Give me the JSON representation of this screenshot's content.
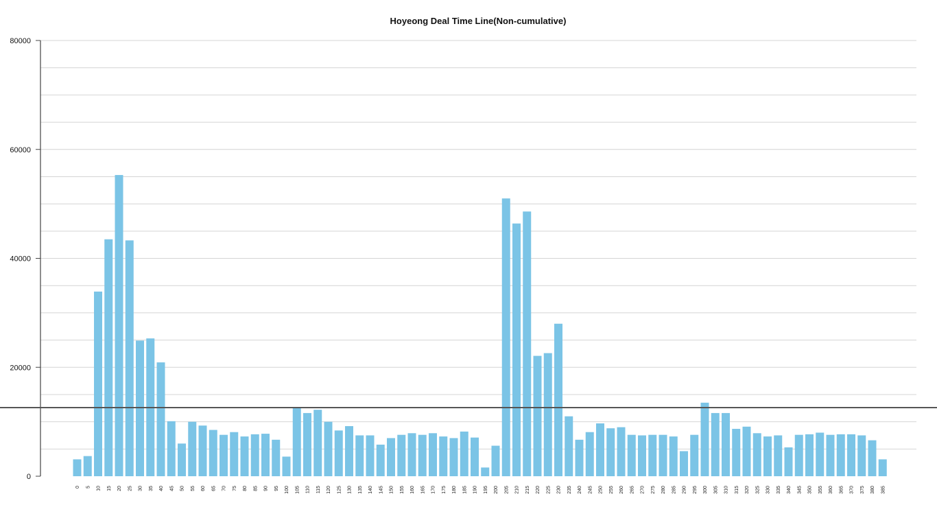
{
  "chart_data": {
    "type": "bar",
    "title": "Hoyeong Deal Time Line(Non-cumulative)",
    "xlabel": "",
    "ylabel": "",
    "ylim": [
      0,
      80000
    ],
    "yticks": [
      "0",
      "20000",
      "40000",
      "60000",
      "80000"
    ],
    "grid": true,
    "categories": [
      "0",
      "5",
      "10",
      "15",
      "20",
      "25",
      "30",
      "35",
      "40",
      "45",
      "50",
      "55",
      "60",
      "65",
      "70",
      "75",
      "80",
      "85",
      "90",
      "95",
      "100",
      "105",
      "110",
      "115",
      "120",
      "125",
      "130",
      "135",
      "140",
      "145",
      "150",
      "155",
      "160",
      "165",
      "170",
      "175",
      "180",
      "185",
      "190",
      "195",
      "200",
      "205",
      "210",
      "215",
      "220",
      "225",
      "230",
      "235",
      "240",
      "245",
      "250",
      "255",
      "260",
      "265",
      "270",
      "275",
      "280",
      "285",
      "290",
      "295",
      "300",
      "305",
      "310",
      "315",
      "320",
      "325",
      "330",
      "335",
      "340",
      "345",
      "350",
      "355",
      "360",
      "365",
      "370",
      "375",
      "380",
      "385"
    ],
    "values": [
      3100,
      3700,
      33900,
      43500,
      55300,
      43300,
      24900,
      25300,
      20900,
      10100,
      6000,
      10000,
      9300,
      8500,
      7600,
      8100,
      7300,
      7700,
      7800,
      6700,
      3600,
      12600,
      11600,
      12200,
      10000,
      8400,
      9200,
      7500,
      7500,
      5800,
      7000,
      7600,
      7900,
      7600,
      7900,
      7300,
      7000,
      8200,
      7100,
      1600,
      5600,
      51000,
      46400,
      48600,
      22100,
      22600,
      28000,
      11000,
      6700,
      8100,
      9700,
      8800,
      9000,
      7600,
      7500,
      7600,
      7600,
      7300,
      4600,
      7600,
      13500,
      11600,
      11600,
      8700,
      9100,
      7900,
      7300,
      7500,
      5300,
      7600,
      7700,
      8000,
      7600,
      7700,
      7700,
      7500,
      6600,
      3100
    ],
    "reference_line": 12600,
    "colors": {
      "bar": "#7bc4e6",
      "reference_line": "#555555",
      "grid": "#d4d4d4",
      "axis": "#444444"
    }
  }
}
